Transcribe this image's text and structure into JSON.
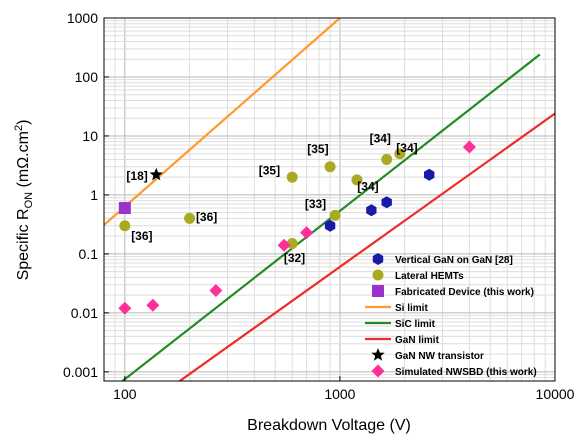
{
  "chart_data": {
    "type": "scatter",
    "xscale": "log",
    "yscale": "log",
    "xlim": [
      80,
      10000
    ],
    "ylim": [
      0.0007,
      1000
    ],
    "xlabel": "Breakdown Voltage (V)",
    "ylabel_main": "Specific R",
    "ylabel_sub": "ON",
    "ylabel_tail": " (mΩ.cm",
    "ylabel_sup": "2",
    "ylabel_end": ")",
    "xticks": [
      {
        "value": 100,
        "label": "100"
      },
      {
        "value": 1000,
        "label": "1000"
      },
      {
        "value": 10000,
        "label": "10000"
      }
    ],
    "yticks": [
      {
        "value": 0.001,
        "label": "0.001"
      },
      {
        "value": 0.01,
        "label": "0.01"
      },
      {
        "value": 0.1,
        "label": "0.1"
      },
      {
        "value": 1,
        "label": "1"
      },
      {
        "value": 10,
        "label": "10"
      },
      {
        "value": 100,
        "label": "100"
      },
      {
        "value": 1000,
        "label": "1000"
      }
    ],
    "grid": true,
    "legend_position": "bottom-right",
    "series": [
      {
        "name": "Vertical GaN on GaN [28]",
        "marker": "hexagon",
        "color": "#1a1aaa",
        "points": [
          [
            900,
            0.3
          ],
          [
            1400,
            0.55
          ],
          [
            1650,
            0.75
          ],
          [
            2600,
            2.2
          ]
        ]
      },
      {
        "name": "Lateral HEMTs",
        "marker": "circle",
        "color": "#aaaa22",
        "points": [
          [
            100,
            0.3
          ],
          [
            200,
            0.4
          ],
          [
            600,
            2.0
          ],
          [
            600,
            0.15
          ],
          [
            900,
            3.0
          ],
          [
            950,
            0.45
          ],
          [
            1200,
            1.8
          ],
          [
            1650,
            4.0
          ],
          [
            1900,
            5.0
          ]
        ]
      },
      {
        "name": "Fabricated Device (this work)",
        "marker": "square",
        "color": "#9933cc",
        "points": [
          [
            100,
            0.6
          ]
        ]
      },
      {
        "name": "GaN NW transistor",
        "marker": "star",
        "color": "#000000",
        "points": [
          [
            140,
            2.2
          ]
        ]
      },
      {
        "name": "Simulated NWSBD (this work)",
        "marker": "diamond",
        "color": "#ff2f9a",
        "points": [
          [
            100,
            0.012
          ],
          [
            135,
            0.0135
          ],
          [
            265,
            0.024
          ],
          [
            550,
            0.14
          ],
          [
            700,
            0.23
          ],
          [
            4000,
            6.5
          ]
        ]
      }
    ],
    "lines": [
      {
        "name": "Si limit",
        "color": "#ff9a2e",
        "points": [
          [
            80,
            0.31
          ],
          [
            1000,
            1000
          ]
        ]
      },
      {
        "name": "SiC limit",
        "color": "#228b22",
        "points": [
          [
            95,
            0.00065
          ],
          [
            8500,
            240
          ]
        ]
      },
      {
        "name": "GaN limit",
        "color": "#ee2a2a",
        "points": [
          [
            175,
            0.00065
          ],
          [
            10000,
            24
          ]
        ]
      }
    ],
    "annotations": [
      {
        "text": "[18]",
        "x": 114,
        "y": 2.1
      },
      {
        "text": "[36]",
        "x": 120,
        "y": 0.2
      },
      {
        "text": "[36]",
        "x": 240,
        "y": 0.42
      },
      {
        "text": "[35]",
        "x": 470,
        "y": 2.6
      },
      {
        "text": "[35]",
        "x": 790,
        "y": 6.0
      },
      {
        "text": "[33]",
        "x": 770,
        "y": 0.7
      },
      {
        "text": "[32]",
        "x": 615,
        "y": 0.085
      },
      {
        "text": "[34]",
        "x": 1350,
        "y": 1.4
      },
      {
        "text": "[34]",
        "x": 1540,
        "y": 9.0
      },
      {
        "text": "[34]",
        "x": 2050,
        "y": 6.3
      }
    ],
    "legend": [
      {
        "label": "Vertical GaN on GaN [28]",
        "kind": "hexagon",
        "color": "#1a1aaa"
      },
      {
        "label": "Lateral HEMTs",
        "kind": "circle",
        "color": "#aaaa22"
      },
      {
        "label": "Fabricated Device (this work)",
        "kind": "square",
        "color": "#9933cc"
      },
      {
        "label": "Si limit",
        "kind": "line",
        "color": "#ff9a2e"
      },
      {
        "label": "SiC limit",
        "kind": "line",
        "color": "#228b22"
      },
      {
        "label": "GaN limit",
        "kind": "line",
        "color": "#ee2a2a"
      },
      {
        "label": "GaN NW transistor",
        "kind": "star",
        "color": "#000000"
      },
      {
        "label": "Simulated NWSBD (this work)",
        "kind": "diamond",
        "color": "#ff2f9a"
      }
    ]
  }
}
